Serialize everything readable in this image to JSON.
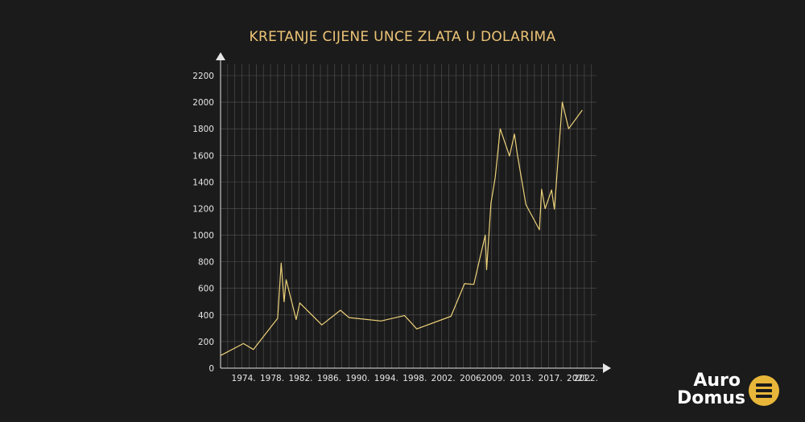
{
  "title": "KRETANJE CIJENE UNCE ZLATA U DOLARIMA",
  "colors": {
    "background": "#1c1b1b",
    "line": "#ecd27a",
    "title": "#ebc477",
    "grid": "#555555",
    "axis": "#e6e6e6",
    "brand_accent": "#e8b73a"
  },
  "chart_data": {
    "type": "line",
    "title": "KRETANJE CIJENE UNCE ZLATA U DOLARIMA",
    "xlabel": "",
    "ylabel": "",
    "ylim": [
      0,
      2200
    ],
    "yticks": [
      0,
      200,
      400,
      600,
      800,
      1000,
      1200,
      1400,
      1600,
      1800,
      2000,
      2200
    ],
    "xlim": [
      1971,
      2023.7
    ],
    "xtick_labels": [
      {
        "x": 1974,
        "label": "1974."
      },
      {
        "x": 1978,
        "label": "1978."
      },
      {
        "x": 1982,
        "label": "1982."
      },
      {
        "x": 1986,
        "label": "1986."
      },
      {
        "x": 1990,
        "label": "1990."
      },
      {
        "x": 1994,
        "label": "1994."
      },
      {
        "x": 1998,
        "label": "1998."
      },
      {
        "x": 2002,
        "label": "2002."
      },
      {
        "x": 2006,
        "label": "2006."
      },
      {
        "x": 2009,
        "label": "2009."
      },
      {
        "x": 2013,
        "label": "2013."
      },
      {
        "x": 2017,
        "label": "2017."
      },
      {
        "x": 2021,
        "label": "2021."
      },
      {
        "x": 2022,
        "label": "2022."
      }
    ],
    "grid": true,
    "series": [
      {
        "x": [
          1971,
          1974.2,
          1975.6,
          1979,
          1979.5,
          1979.9,
          1980.2,
          1981.6,
          1982.1,
          1985.2,
          1987.8,
          1989,
          1993.5,
          1996.8,
          1998.5,
          2003.3,
          2005.2,
          2006.5,
          2008.1,
          2008.3,
          2008.9,
          2009.5,
          2010.2,
          2011.5,
          2012.2,
          2012.6,
          2013.8,
          2015.7,
          2016,
          2016.5,
          2017.4,
          2017.8,
          2018.9,
          2019.8,
          2021.7
        ],
        "y": [
          95,
          185,
          140,
          375,
          790,
          500,
          665,
          365,
          490,
          325,
          435,
          380,
          355,
          395,
          295,
          390,
          635,
          630,
          1000,
          740,
          1240,
          1435,
          1800,
          1595,
          1760,
          1610,
          1230,
          1040,
          1345,
          1200,
          1340,
          1195,
          2000,
          1800,
          1940
        ]
      }
    ]
  },
  "brand": {
    "line1": "Auro",
    "line2": "Domus"
  }
}
